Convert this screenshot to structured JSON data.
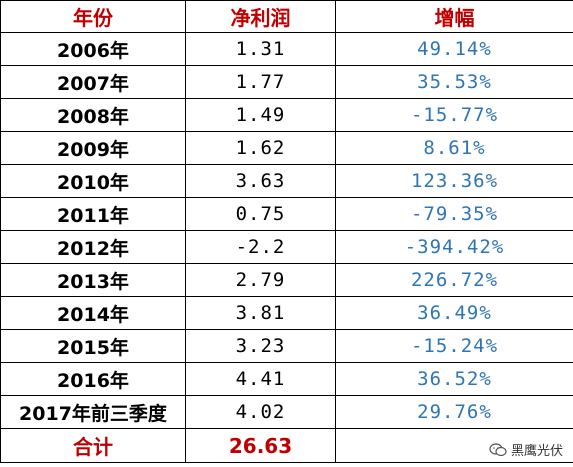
{
  "table": {
    "headers": [
      "年份",
      "净利润",
      "增幅"
    ],
    "rows": [
      {
        "year": "2006年",
        "profit": "1.31",
        "growth": "49.14%"
      },
      {
        "year": "2007年",
        "profit": "1.77",
        "growth": "35.53%"
      },
      {
        "year": "2008年",
        "profit": "1.49",
        "growth": "-15.77%"
      },
      {
        "year": "2009年",
        "profit": "1.62",
        "growth": "8.61%"
      },
      {
        "year": "2010年",
        "profit": "3.63",
        "growth": "123.36%"
      },
      {
        "year": "2011年",
        "profit": "0.75",
        "growth": "-79.35%"
      },
      {
        "year": "2012年",
        "profit": "-2.2",
        "growth": "-394.42%"
      },
      {
        "year": "2013年",
        "profit": "2.79",
        "growth": "226.72%"
      },
      {
        "year": "2014年",
        "profit": "3.81",
        "growth": "36.49%"
      },
      {
        "year": "2015年",
        "profit": "3.23",
        "growth": "-15.24%"
      },
      {
        "year": "2016年",
        "profit": "4.41",
        "growth": "36.52%"
      },
      {
        "year": "2017年前三季度",
        "profit": "4.02",
        "growth": "29.76%"
      }
    ],
    "total": {
      "label": "合计",
      "profit": "26.63",
      "growth": ""
    }
  },
  "watermark": {
    "text": "黑鹰光伏",
    "icon": "wechat-icon"
  },
  "colors": {
    "header_text": "#c00000",
    "growth_text": "#2e75b6",
    "body_text": "#000000",
    "border": "#000000"
  }
}
